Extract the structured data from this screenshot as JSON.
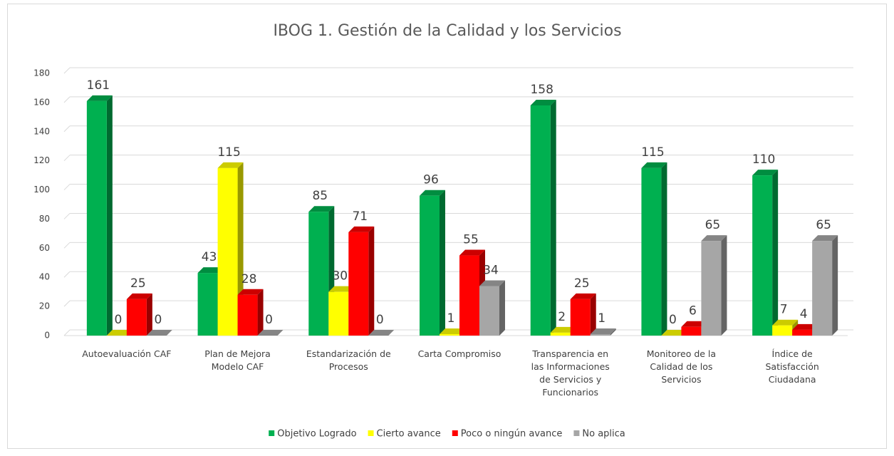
{
  "chart_data": {
    "type": "bar3d",
    "title": "IBOG 1. Gestión de la Calidad y los Servicios",
    "categories": [
      "Autoevaluación CAF",
      "Plan de Mejora Modelo CAF",
      "Estandarización de Procesos",
      "Carta Compromiso",
      "Transparencia en las Informaciones de Servicios y Funcionarios",
      "Monitoreo de la Calidad de los Servicios",
      "Índice de Satisfacción Ciudadana"
    ],
    "series": [
      {
        "name": "Objetivo Logrado",
        "color": "#00b050",
        "values": [
          161,
          43,
          85,
          96,
          158,
          115,
          110
        ]
      },
      {
        "name": "Cierto avance",
        "color": "#ffff00",
        "values": [
          0,
          115,
          30,
          1,
          2,
          0,
          7
        ]
      },
      {
        "name": "Poco o ningún avance",
        "color": "#ff0000",
        "values": [
          25,
          28,
          71,
          55,
          25,
          6,
          4
        ]
      },
      {
        "name": "No aplica",
        "color": "#a6a6a6",
        "values": [
          0,
          0,
          0,
          34,
          1,
          65,
          65
        ]
      }
    ],
    "ylim": [
      0,
      180
    ],
    "yticks": [
      0,
      20,
      40,
      60,
      80,
      100,
      120,
      140,
      160,
      180
    ],
    "grid": true,
    "legend": "bottom"
  }
}
